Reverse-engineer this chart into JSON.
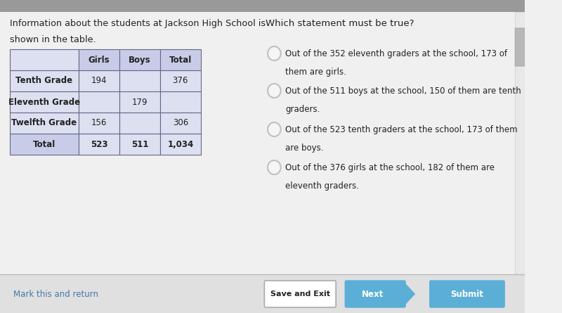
{
  "bg_color": "#f0f0f0",
  "left_text_line1": "Information about the students at Jackson High School is",
  "left_text_line2": "shown in the table.",
  "right_text_title": "Which statement must be true?",
  "table_headers": [
    "",
    "Girls",
    "Boys",
    "Total"
  ],
  "table_rows": [
    [
      "Tenth Grade",
      "194",
      "",
      "376"
    ],
    [
      "Eleventh Grade",
      "",
      "179",
      ""
    ],
    [
      "Twelfth Grade",
      "156",
      "",
      "306"
    ],
    [
      "Total",
      "523",
      "511",
      "1,034"
    ]
  ],
  "table_header_bg": "#c8cce8",
  "table_row_bg": "#dde0f0",
  "table_total_bg": "#c8cce8",
  "options": [
    [
      "Out of the 352 eleventh graders at the school, 173 of",
      "them are girls."
    ],
    [
      "Out of the 511 boys at the school, 150 of them are tenth",
      "graders."
    ],
    [
      "Out of the 523 tenth graders at the school, 173 of them",
      "are boys."
    ],
    [
      "Out of the 376 girls at the school, 182 of them are",
      "eleventh graders."
    ]
  ],
  "radio_color": "#c0c0c0",
  "bottom_link": "Mark this and return",
  "btn_save": "Save and Exit",
  "btn_next": "Next",
  "btn_submit": "Submit",
  "btn_blue": "#5bafd6",
  "btn_border": "#aaaaaa",
  "text_color": "#222222",
  "link_color": "#4477aa",
  "top_bar_color": "#999999",
  "bottom_bar_color": "#e0e0e0"
}
